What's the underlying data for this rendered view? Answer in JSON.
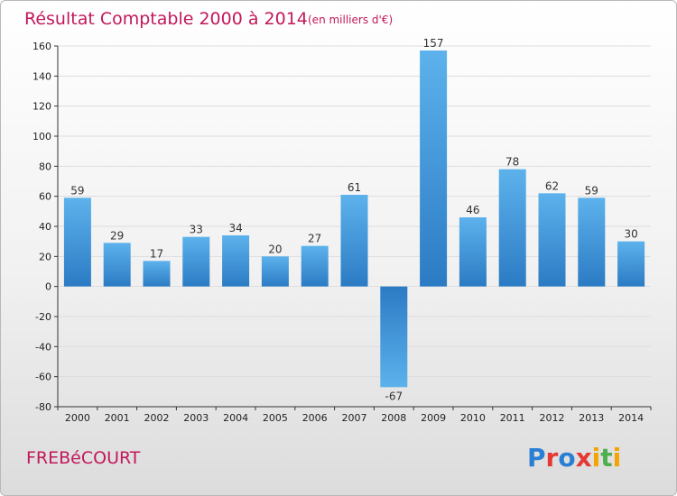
{
  "header": {
    "title": "Résultat Comptable 2000 à 2014",
    "subtitle": "(en milliers d'€)"
  },
  "footer": {
    "commune": "FREBéCOURT",
    "logo": {
      "text": "Proxiti",
      "letter_colors": [
        "#2a7fd4",
        "#e53935",
        "#2a7fd4",
        "#e53935",
        "#f5a300",
        "#4caf50",
        "#f5a300"
      ]
    }
  },
  "colors": {
    "bar_light": "#5db2ec",
    "bar_dark": "#2b7bc4",
    "axis": "#333333",
    "grid": "#dddddd"
  },
  "chart_data": {
    "type": "bar",
    "title": "Résultat Comptable 2000 à 2014",
    "subtitle": "(en milliers d'€)",
    "categories": [
      "2000",
      "2001",
      "2002",
      "2003",
      "2004",
      "2005",
      "2006",
      "2007",
      "2008",
      "2009",
      "2010",
      "2011",
      "2012",
      "2013",
      "2014"
    ],
    "values": [
      59,
      29,
      17,
      33,
      34,
      20,
      27,
      61,
      -67,
      157,
      46,
      78,
      62,
      59,
      30
    ],
    "yticks": [
      -80,
      -60,
      -40,
      -20,
      0,
      20,
      40,
      60,
      80,
      100,
      120,
      140,
      160
    ],
    "ylim": [
      -80,
      160
    ],
    "grid": true,
    "legend": "none"
  }
}
